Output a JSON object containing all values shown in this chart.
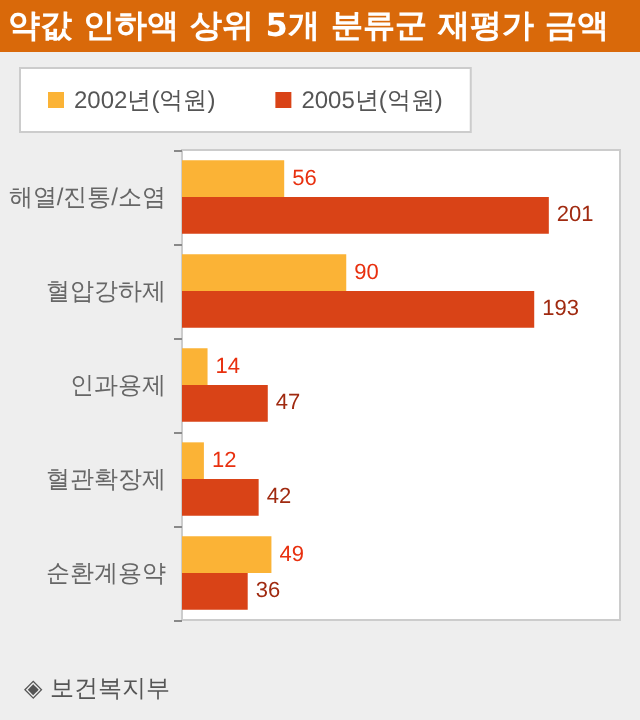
{
  "chart_data": {
    "type": "bar",
    "orientation": "horizontal",
    "title": "약값 인하액 상위 5개 분류군 재평가 금액",
    "categories": [
      "해열/진통/소염",
      "혈압강하제",
      "인과용제",
      "혈관확장제",
      "순환계용약"
    ],
    "series": [
      {
        "name": "2002년(억원)",
        "color": "#fbb336",
        "values": [
          56,
          90,
          14,
          12,
          49
        ]
      },
      {
        "name": "2005년(억원)",
        "color": "#d94317",
        "values": [
          201,
          193,
          47,
          42,
          36
        ]
      }
    ],
    "xlim": [
      0,
      240
    ],
    "tick_labels": "y",
    "data_labels": true,
    "legend": "top left",
    "grid": false,
    "annotations": [
      "◈ 보건복지부"
    ]
  }
}
